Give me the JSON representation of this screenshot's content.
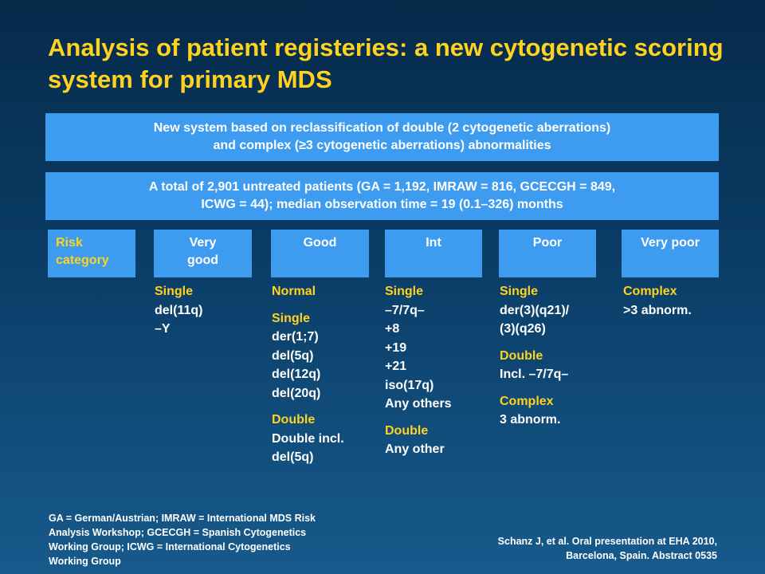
{
  "title": "Analysis of patient registeries: a new cytogenetic scoring system for primary MDS",
  "banner1": {
    "line1": "New system based on reclassification of double (2 cytogenetic aberrations)",
    "line2": "and complex (≥3 cytogenetic aberrations) abnormalities"
  },
  "banner2": {
    "line1": "A total of 2,901 untreated patients (GA = 1,192, IMRAW = 816, GCECGH = 849,",
    "line2": "ICWG = 44); median observation time = 19 (0.1–326) months"
  },
  "headers": {
    "risk_line1": "Risk",
    "risk_line2": "category",
    "very_good_line1": "Very",
    "very_good_line2": "good",
    "good": "Good",
    "int": "Int",
    "poor": "Poor",
    "very_poor": "Very poor"
  },
  "columns": {
    "very_good": {
      "single_label": "Single",
      "single_items": [
        "del(11q)",
        "–Y"
      ]
    },
    "good": {
      "normal_label": "Normal",
      "single_label": "Single",
      "single_items": [
        "der(1;7)",
        "del(5q)",
        "del(12q)",
        "del(20q)"
      ],
      "double_label": "Double",
      "double_items": [
        "Double incl.",
        "del(5q)"
      ]
    },
    "int": {
      "single_label": "Single",
      "single_items": [
        "–7/7q–",
        "+8",
        "+19",
        "+21",
        "iso(17q)",
        "Any others"
      ],
      "double_label": "Double",
      "double_items": [
        "Any other"
      ]
    },
    "poor": {
      "single_label": "Single",
      "single_items": [
        "der(3)(q21)/",
        "(3)(q26)"
      ],
      "double_label": "Double",
      "double_items": [
        "Incl. –7/7q–"
      ],
      "complex_label": "Complex",
      "complex_items": [
        "3 abnorm."
      ]
    },
    "very_poor": {
      "complex_label": "Complex",
      "complex_items": [
        ">3 abnorm."
      ]
    }
  },
  "footnote": {
    "line1": "GA = German/Austrian; IMRAW = International MDS Risk",
    "line2": "Analysis Workshop; GCECGH = Spanish Cytogenetics",
    "line3": "Working Group; ICWG = International Cytogenetics",
    "line4": "Working Group"
  },
  "citation": {
    "line1": "Schanz J, et al. Oral presentation at EHA 2010,",
    "line2": "Barcelona, Spain.  Abstract 0535"
  },
  "colors": {
    "title": "#ffd21f",
    "box": "#3d9bf0",
    "label": "#ffd21f",
    "text": "#ffffff"
  }
}
